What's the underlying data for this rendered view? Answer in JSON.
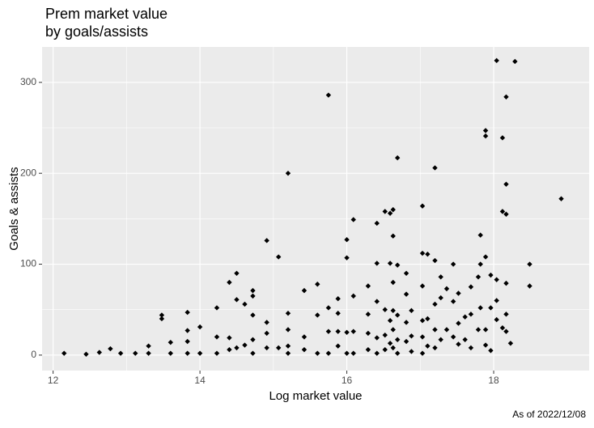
{
  "chart_data": {
    "type": "scatter",
    "title": [
      "Prem market value",
      "by goals/assists"
    ],
    "x_label": "Log market value",
    "y_label": "Goals & assists",
    "caption": "As of 2022/12/08",
    "color": "#000000",
    "grid": true,
    "xlim": [
      11.85,
      19.3
    ],
    "xticks": [
      12,
      14,
      16,
      18
    ],
    "ylim": [
      -17,
      339
    ],
    "yticks": [
      0,
      100,
      200,
      300
    ],
    "x": [
      12.15,
      12.45,
      12.63,
      12.78,
      12.92,
      13.12,
      13.3,
      13.3,
      13.48,
      13.48,
      13.6,
      13.6,
      13.83,
      13.83,
      13.83,
      13.83,
      14,
      14,
      14.23,
      14.23,
      14.23,
      14.4,
      14.4,
      14.4,
      14.5,
      14.5,
      14.5,
      14.61,
      14.61,
      14.72,
      14.72,
      14.72,
      14.72,
      14.72,
      14.91,
      14.91,
      14.91,
      14.91,
      15.07,
      15.07,
      15.2,
      15.2,
      15.2,
      15.2,
      15.2,
      15.42,
      15.42,
      15.42,
      15.6,
      15.6,
      15.6,
      15.75,
      15.75,
      15.75,
      15.75,
      15.88,
      15.88,
      15.88,
      15.88,
      16,
      16,
      16,
      16,
      16.09,
      16.09,
      16.09,
      16.09,
      16.29,
      16.29,
      16.29,
      16.29,
      16.41,
      16.41,
      16.41,
      16.41,
      16.41,
      16.52,
      16.52,
      16.52,
      16.52,
      16.59,
      16.59,
      16.59,
      16.59,
      16.63,
      16.63,
      16.63,
      16.63,
      16.63,
      16.63,
      16.69,
      16.69,
      16.69,
      16.69,
      16.69,
      16.81,
      16.81,
      16.81,
      16.81,
      16.88,
      16.88,
      16.88,
      17.03,
      17.03,
      17.03,
      17.03,
      17.03,
      17.03,
      17.1,
      17.1,
      17.1,
      17.2,
      17.2,
      17.2,
      17.2,
      17.2,
      17.28,
      17.28,
      17.28,
      17.36,
      17.36,
      17.45,
      17.45,
      17.45,
      17.52,
      17.52,
      17.52,
      17.61,
      17.61,
      17.69,
      17.69,
      17.69,
      17.79,
      17.79,
      17.82,
      17.82,
      17.82,
      17.89,
      17.89,
      17.89,
      17.89,
      17.89,
      17.96,
      17.96,
      17.96,
      18.04,
      18.04,
      18.04,
      18.04,
      18.12,
      18.12,
      18.12,
      18.17,
      18.17,
      18.17,
      18.17,
      18.17,
      18.17,
      18.23,
      18.29,
      18.49,
      18.49,
      18.92
    ],
    "values": [
      2,
      1,
      3,
      7,
      2,
      2,
      2,
      10,
      44,
      40,
      2,
      14,
      47,
      27,
      15,
      2,
      31,
      2,
      52,
      20,
      2,
      80,
      19,
      6,
      90,
      61,
      8,
      56,
      11,
      65,
      71,
      44,
      17,
      2,
      126,
      36,
      24,
      8,
      108,
      8,
      200,
      46,
      28,
      10,
      2,
      71,
      20,
      6,
      78,
      44,
      2,
      286,
      52,
      26,
      2,
      62,
      46,
      26,
      10,
      127,
      107,
      25,
      2,
      149,
      65,
      26,
      2,
      76,
      45,
      24,
      6,
      145,
      101,
      59,
      19,
      2,
      158,
      50,
      22,
      6,
      156,
      101,
      38,
      13,
      160,
      131,
      80,
      49,
      28,
      8,
      217,
      99,
      44,
      17,
      2,
      90,
      67,
      36,
      15,
      49,
      21,
      4,
      164,
      112,
      76,
      38,
      20,
      2,
      111,
      40,
      10,
      206,
      104,
      56,
      28,
      8,
      86,
      63,
      17,
      73,
      28,
      100,
      59,
      20,
      68,
      35,
      12,
      42,
      17,
      75,
      45,
      8,
      86,
      28,
      132,
      100,
      52,
      247,
      241,
      108,
      28,
      11,
      88,
      52,
      5,
      324,
      83,
      60,
      39,
      239,
      158,
      30,
      284,
      188,
      155,
      79,
      45,
      26,
      13,
      323,
      100,
      76,
      172
    ]
  }
}
